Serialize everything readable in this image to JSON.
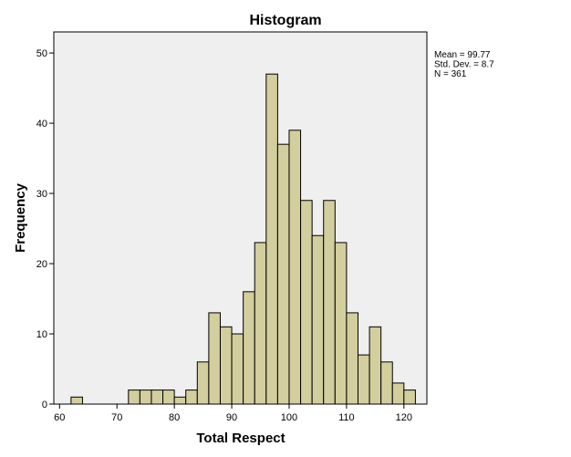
{
  "chart_data": {
    "type": "bar",
    "title": "Histogram",
    "xlabel": "Total Respect",
    "ylabel": "Frequency",
    "xlim": [
      59,
      124
    ],
    "ylim": [
      0,
      53
    ],
    "x_ticks": [
      60,
      70,
      80,
      90,
      100,
      110,
      120
    ],
    "y_ticks": [
      0,
      10,
      20,
      30,
      40,
      50
    ],
    "bin_width": 2,
    "bins": [
      {
        "x0": 62,
        "x1": 64,
        "count": 1
      },
      {
        "x0": 72,
        "x1": 74,
        "count": 2
      },
      {
        "x0": 74,
        "x1": 76,
        "count": 2
      },
      {
        "x0": 76,
        "x1": 78,
        "count": 2
      },
      {
        "x0": 78,
        "x1": 80,
        "count": 2
      },
      {
        "x0": 80,
        "x1": 82,
        "count": 1
      },
      {
        "x0": 82,
        "x1": 84,
        "count": 2
      },
      {
        "x0": 84,
        "x1": 86,
        "count": 6
      },
      {
        "x0": 86,
        "x1": 88,
        "count": 13
      },
      {
        "x0": 88,
        "x1": 90,
        "count": 11
      },
      {
        "x0": 90,
        "x1": 92,
        "count": 10
      },
      {
        "x0": 92,
        "x1": 94,
        "count": 16
      },
      {
        "x0": 94,
        "x1": 96,
        "count": 23
      },
      {
        "x0": 96,
        "x1": 98,
        "count": 47
      },
      {
        "x0": 98,
        "x1": 100,
        "count": 37
      },
      {
        "x0": 100,
        "x1": 102,
        "count": 39
      },
      {
        "x0": 102,
        "x1": 104,
        "count": 29
      },
      {
        "x0": 104,
        "x1": 106,
        "count": 24
      },
      {
        "x0": 106,
        "x1": 108,
        "count": 29
      },
      {
        "x0": 108,
        "x1": 110,
        "count": 23
      },
      {
        "x0": 110,
        "x1": 112,
        "count": 13
      },
      {
        "x0": 112,
        "x1": 114,
        "count": 7
      },
      {
        "x0": 114,
        "x1": 116,
        "count": 11
      },
      {
        "x0": 116,
        "x1": 118,
        "count": 6
      },
      {
        "x0": 118,
        "x1": 120,
        "count": 3
      },
      {
        "x0": 120,
        "x1": 122,
        "count": 2
      }
    ],
    "stats": [
      "Mean = 99.77",
      "Std. Dev. = 8.7",
      "N = 361"
    ],
    "grid": false,
    "colors": {
      "bar_fill": "#d3ce9e",
      "bar_stroke": "#000000",
      "plot_background": "#efefef"
    }
  }
}
